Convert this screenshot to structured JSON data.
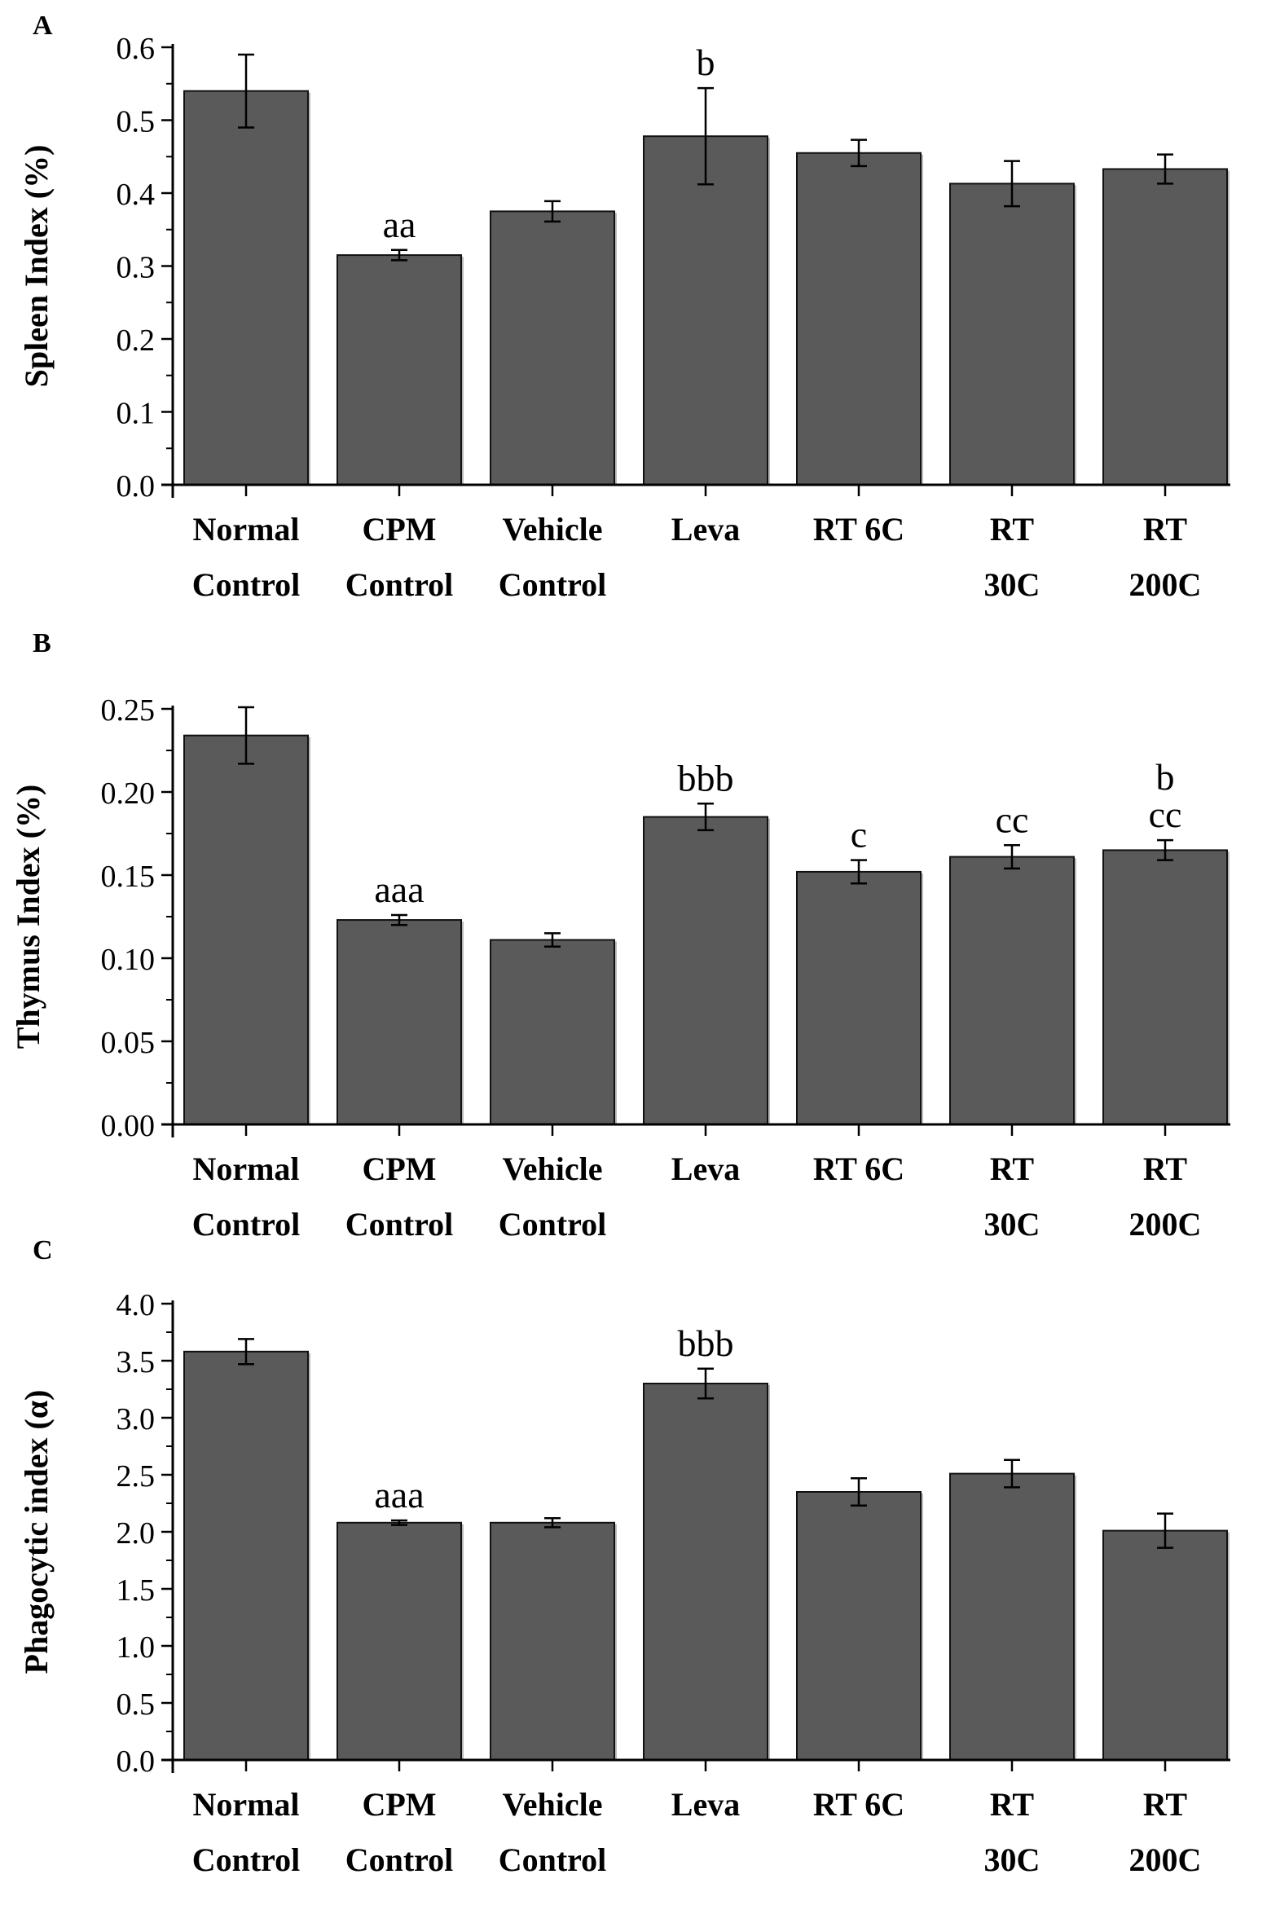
{
  "chart_data": [
    {
      "panel": "A",
      "type": "bar",
      "categories": [
        [
          "Normal",
          "Control"
        ],
        [
          "CPM",
          "Control"
        ],
        [
          "Vehicle",
          "Control"
        ],
        [
          "Leva",
          ""
        ],
        [
          "RT 6C",
          ""
        ],
        [
          "RT",
          "30C"
        ],
        [
          "RT",
          "200C"
        ]
      ],
      "values": [
        0.54,
        0.315,
        0.375,
        0.478,
        0.455,
        0.413,
        0.433
      ],
      "errors": [
        0.05,
        0.007,
        0.014,
        0.066,
        0.018,
        0.031,
        0.02
      ],
      "annotations": [
        [],
        [
          "aa"
        ],
        [],
        [
          "b"
        ],
        [],
        [],
        []
      ],
      "ylabel": "Spleen Index (%)",
      "ylim": [
        0,
        0.6
      ],
      "major_ticks": [
        0.0,
        0.1,
        0.2,
        0.3,
        0.4,
        0.5,
        0.6
      ],
      "tick_decimals": 1,
      "bar_color": "#5a5a5a"
    },
    {
      "panel": "B",
      "type": "bar",
      "categories": [
        [
          "Normal",
          "Control"
        ],
        [
          "CPM",
          "Control"
        ],
        [
          "Vehicle",
          "Control"
        ],
        [
          "Leva",
          ""
        ],
        [
          "RT 6C",
          ""
        ],
        [
          "RT",
          "30C"
        ],
        [
          "RT",
          "200C"
        ]
      ],
      "values": [
        0.234,
        0.123,
        0.111,
        0.185,
        0.152,
        0.161,
        0.165
      ],
      "errors": [
        0.017,
        0.003,
        0.004,
        0.008,
        0.007,
        0.007,
        0.006
      ],
      "annotations": [
        [],
        [
          "aaa"
        ],
        [],
        [
          "bbb"
        ],
        [
          "c"
        ],
        [
          "cc"
        ],
        [
          "b",
          "cc"
        ]
      ],
      "ylabel": "Thymus Index (%)",
      "ylim": [
        0,
        0.25
      ],
      "major_ticks": [
        0.0,
        0.05,
        0.1,
        0.15,
        0.2,
        0.25
      ],
      "tick_decimals": 2,
      "bar_color": "#5a5a5a"
    },
    {
      "panel": "C",
      "type": "bar",
      "categories": [
        [
          "Normal",
          "Control"
        ],
        [
          "CPM",
          "Control"
        ],
        [
          "Vehicle",
          "Control"
        ],
        [
          "Leva",
          ""
        ],
        [
          "RT 6C",
          ""
        ],
        [
          "RT",
          "30C"
        ],
        [
          "RT",
          "200C"
        ]
      ],
      "values": [
        3.58,
        2.08,
        2.08,
        3.3,
        2.35,
        2.51,
        2.01
      ],
      "errors": [
        0.11,
        0.02,
        0.04,
        0.13,
        0.12,
        0.12,
        0.15
      ],
      "annotations": [
        [],
        [
          "aaa"
        ],
        [],
        [
          "bbb"
        ],
        [],
        [],
        []
      ],
      "ylabel": "Phagocytic index (α)",
      "ylim": [
        0,
        4.0
      ],
      "major_ticks": [
        0.0,
        0.5,
        1.0,
        1.5,
        2.0,
        2.5,
        3.0,
        3.5,
        4.0
      ],
      "tick_decimals": 1,
      "bar_color": "#5a5a5a"
    }
  ]
}
